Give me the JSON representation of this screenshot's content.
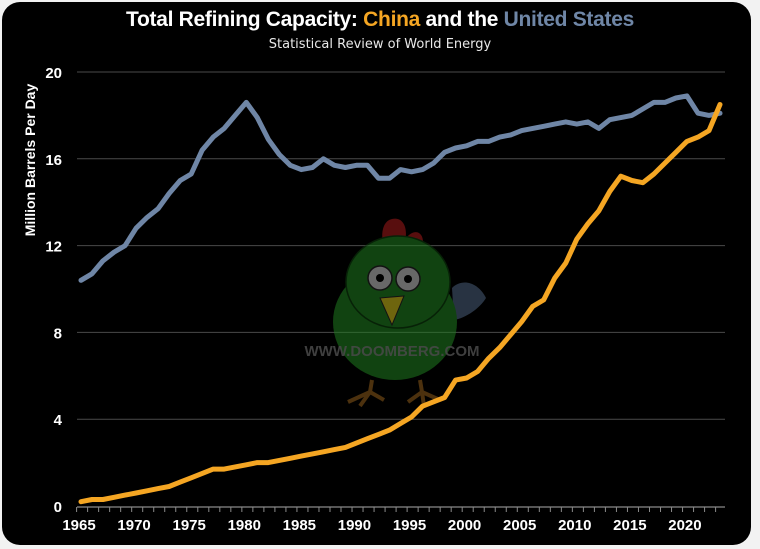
{
  "chart_data": {
    "type": "line",
    "title_parts": [
      "Total Refining Capacity: ",
      "China",
      " and the ",
      "United States"
    ],
    "title": "Total Refining Capacity: China and the United States",
    "subtitle": "Statistical Review of World Energy",
    "xlabel": "",
    "ylabel": "Million Barrels Per Day",
    "ylim": [
      0,
      20
    ],
    "xlim": [
      1965,
      2023
    ],
    "yticks": [
      "0",
      "4",
      "8",
      "12",
      "16",
      "20"
    ],
    "xticks": [
      "1965",
      "1970",
      "1975",
      "1980",
      "1985",
      "1990",
      "1995",
      "2000",
      "2005",
      "2010",
      "2015",
      "2020"
    ],
    "grid": true,
    "legend": "none (colored title words)",
    "x": [
      1965,
      1966,
      1967,
      1968,
      1969,
      1970,
      1971,
      1972,
      1973,
      1974,
      1975,
      1976,
      1977,
      1978,
      1979,
      1980,
      1981,
      1982,
      1983,
      1984,
      1985,
      1986,
      1987,
      1988,
      1989,
      1990,
      1991,
      1992,
      1993,
      1994,
      1995,
      1996,
      1997,
      1998,
      1999,
      2000,
      2001,
      2002,
      2003,
      2004,
      2005,
      2006,
      2007,
      2008,
      2009,
      2010,
      2011,
      2012,
      2013,
      2014,
      2015,
      2016,
      2017,
      2018,
      2019,
      2020,
      2021,
      2022,
      2023
    ],
    "series": [
      {
        "name": "United States",
        "color": "#6f86a6",
        "values": [
          10.4,
          10.7,
          11.3,
          11.7,
          12.0,
          12.8,
          13.3,
          13.7,
          14.4,
          15.0,
          15.3,
          16.4,
          17.0,
          17.4,
          18.0,
          18.6,
          17.9,
          16.9,
          16.2,
          15.7,
          15.5,
          15.6,
          16.0,
          15.7,
          15.6,
          15.7,
          15.7,
          15.1,
          15.1,
          15.5,
          15.4,
          15.5,
          15.8,
          16.3,
          16.5,
          16.6,
          16.8,
          16.8,
          17.0,
          17.1,
          17.3,
          17.4,
          17.5,
          17.6,
          17.7,
          17.6,
          17.7,
          17.4,
          17.8,
          17.9,
          18.0,
          18.3,
          18.6,
          18.6,
          18.8,
          18.9,
          18.1,
          18.0,
          18.1
        ]
      },
      {
        "name": "China",
        "color": "#f5a623",
        "values": [
          0.2,
          0.3,
          0.3,
          0.4,
          0.5,
          0.6,
          0.7,
          0.8,
          0.9,
          1.1,
          1.3,
          1.5,
          1.7,
          1.7,
          1.8,
          1.9,
          2.0,
          2.0,
          2.1,
          2.2,
          2.3,
          2.4,
          2.5,
          2.6,
          2.7,
          2.9,
          3.1,
          3.3,
          3.5,
          3.8,
          4.1,
          4.6,
          4.8,
          5.0,
          5.8,
          5.9,
          6.2,
          6.8,
          7.3,
          7.9,
          8.5,
          9.2,
          9.5,
          10.5,
          11.2,
          12.3,
          13.0,
          13.6,
          14.5,
          15.2,
          15.0,
          14.9,
          15.3,
          15.8,
          16.3,
          16.8,
          17.0,
          17.3,
          18.5
        ]
      }
    ],
    "watermark": "WWW.DOOMBERG.COM"
  }
}
